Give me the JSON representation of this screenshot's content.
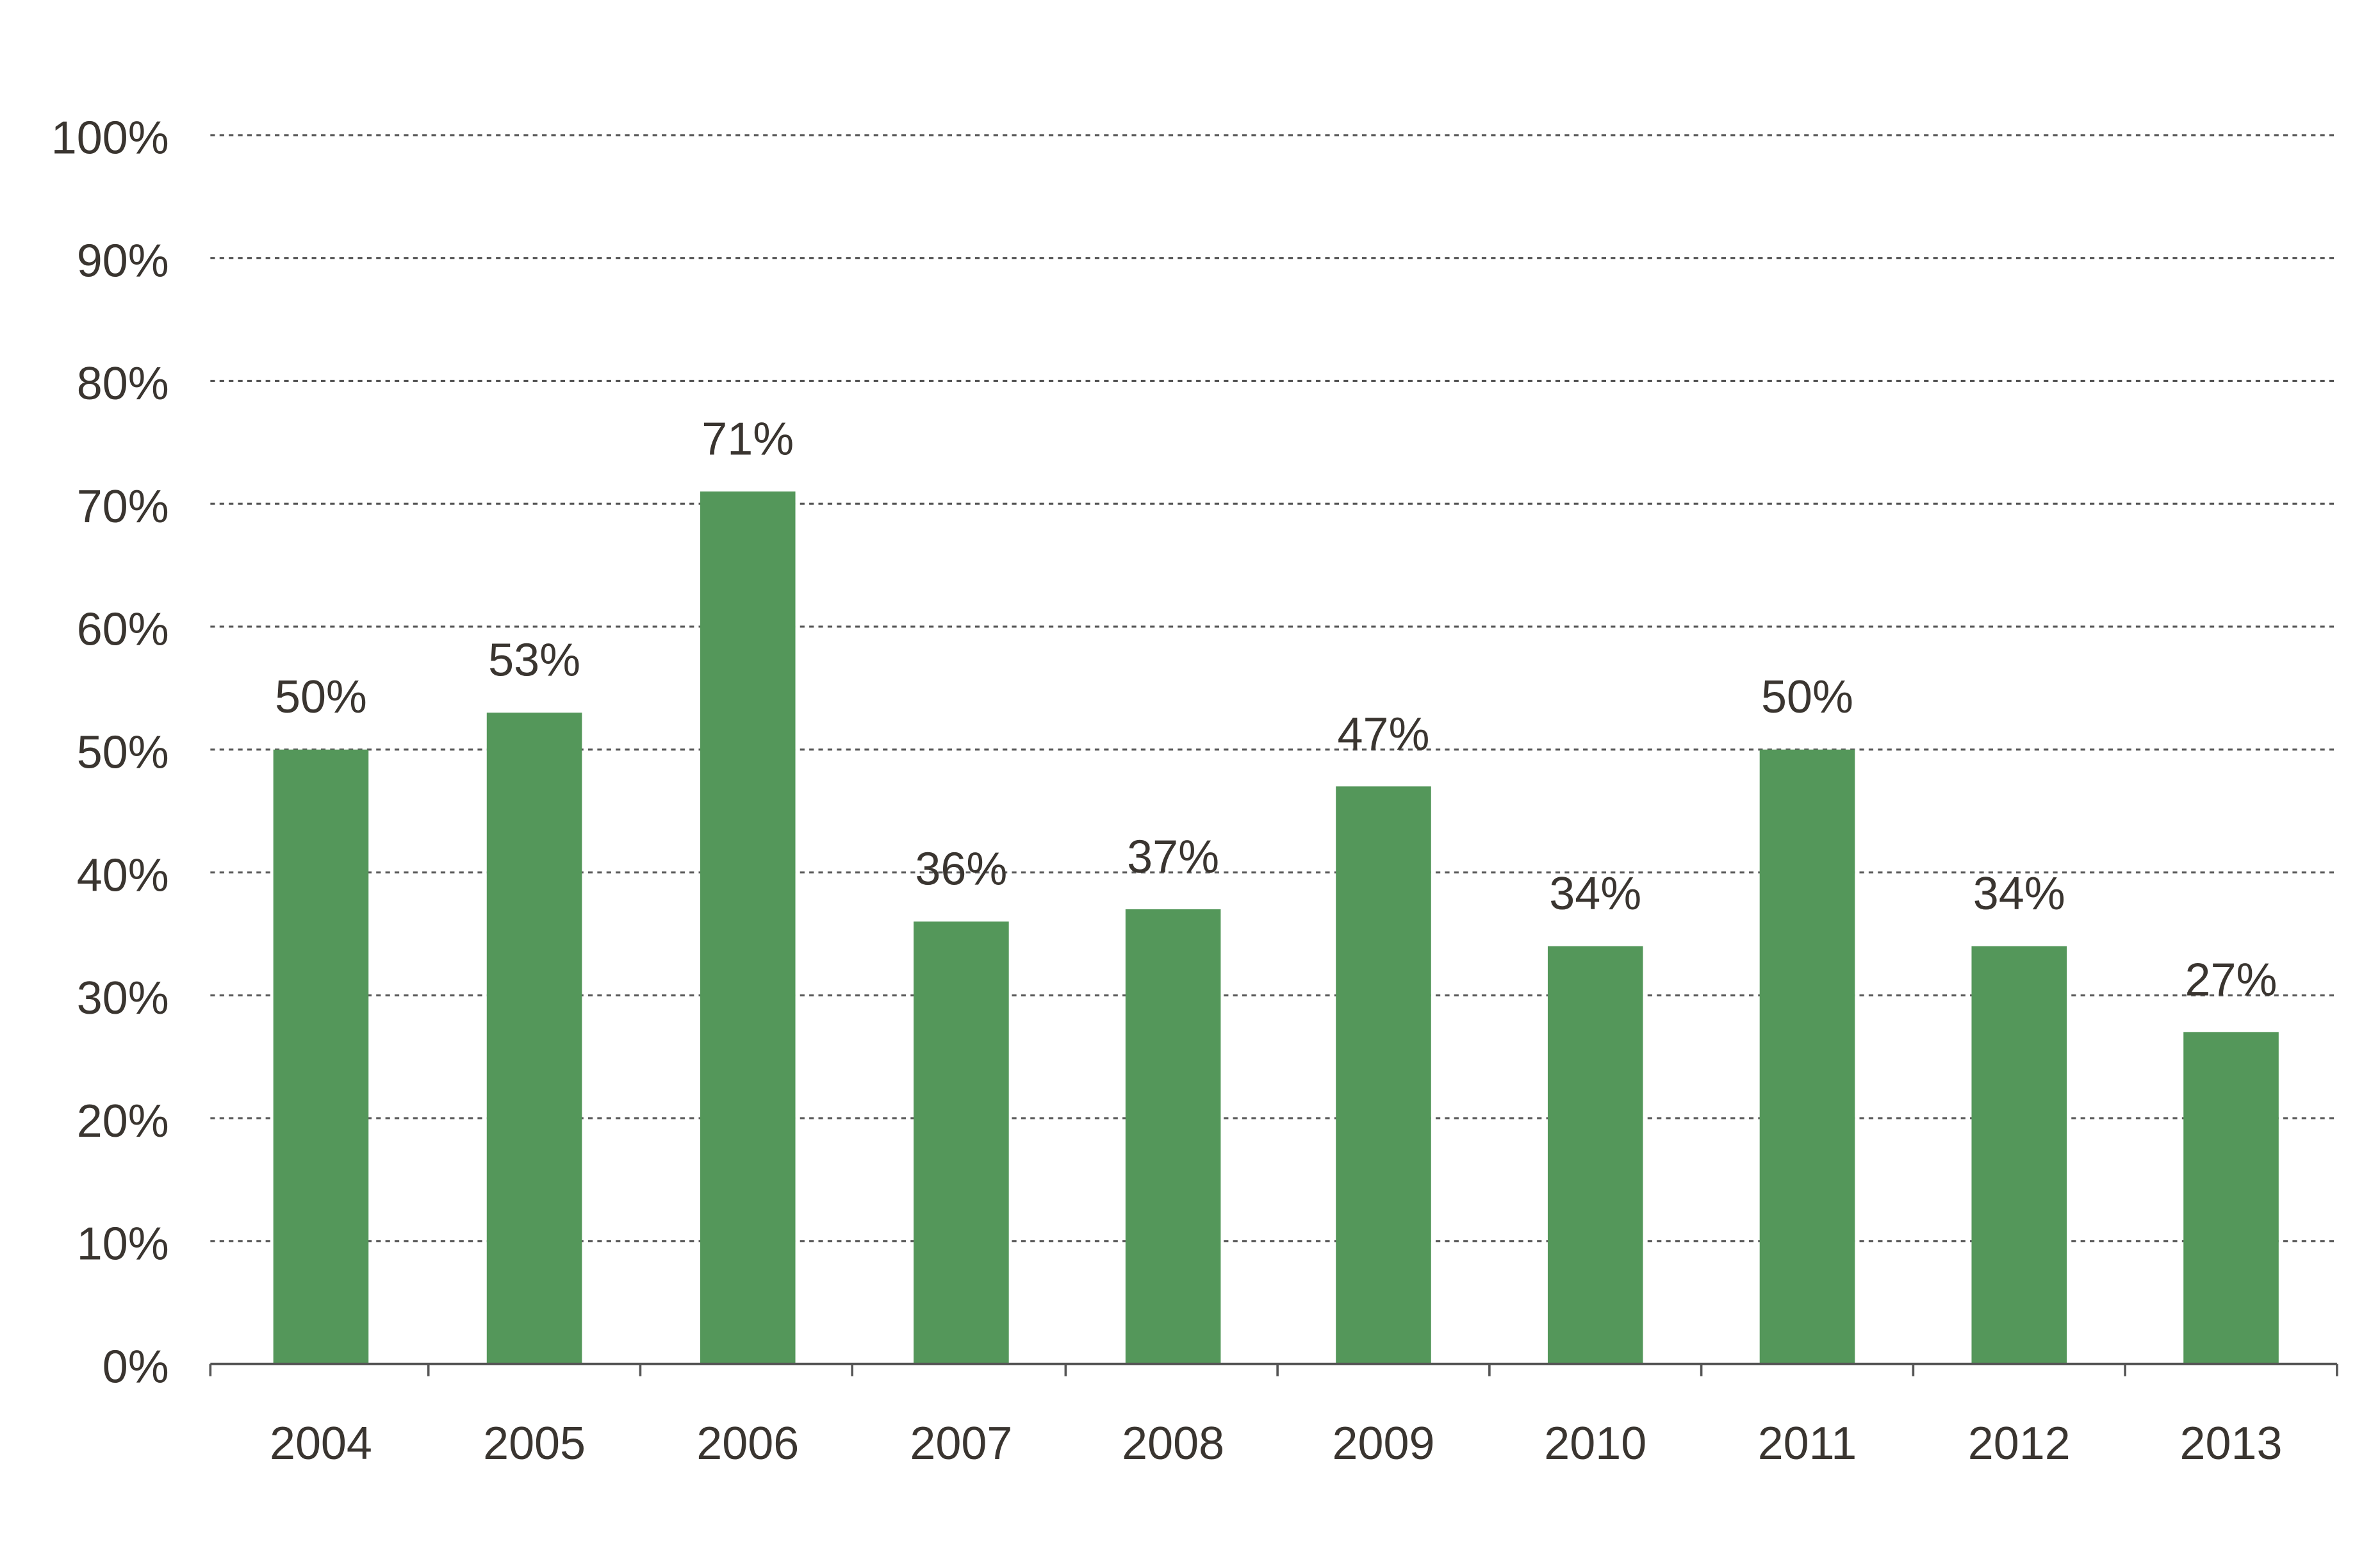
{
  "chart_data": {
    "type": "bar",
    "title": "",
    "xlabel": "",
    "ylabel": "",
    "categories": [
      "2004",
      "2005",
      "2006",
      "2007",
      "2008",
      "2009",
      "2010",
      "2011",
      "2012",
      "2013"
    ],
    "values": [
      50,
      53,
      71,
      36,
      37,
      47,
      34,
      50,
      34,
      27
    ],
    "data_labels": [
      "50%",
      "53%",
      "71%",
      "36%",
      "37%",
      "47%",
      "34%",
      "50%",
      "34%",
      "27%"
    ],
    "ylim": [
      0,
      100
    ],
    "yticks": [
      0,
      10,
      20,
      30,
      40,
      50,
      60,
      70,
      80,
      90,
      100
    ],
    "ytick_labels": [
      "0%",
      "10%",
      "20%",
      "30%",
      "40%",
      "50%",
      "60%",
      "70%",
      "80%",
      "90%",
      "100%"
    ],
    "grid": true,
    "legend": "none",
    "bar_color": "#54975a",
    "text_color": "#3a3530",
    "grid_color": "#555555"
  }
}
